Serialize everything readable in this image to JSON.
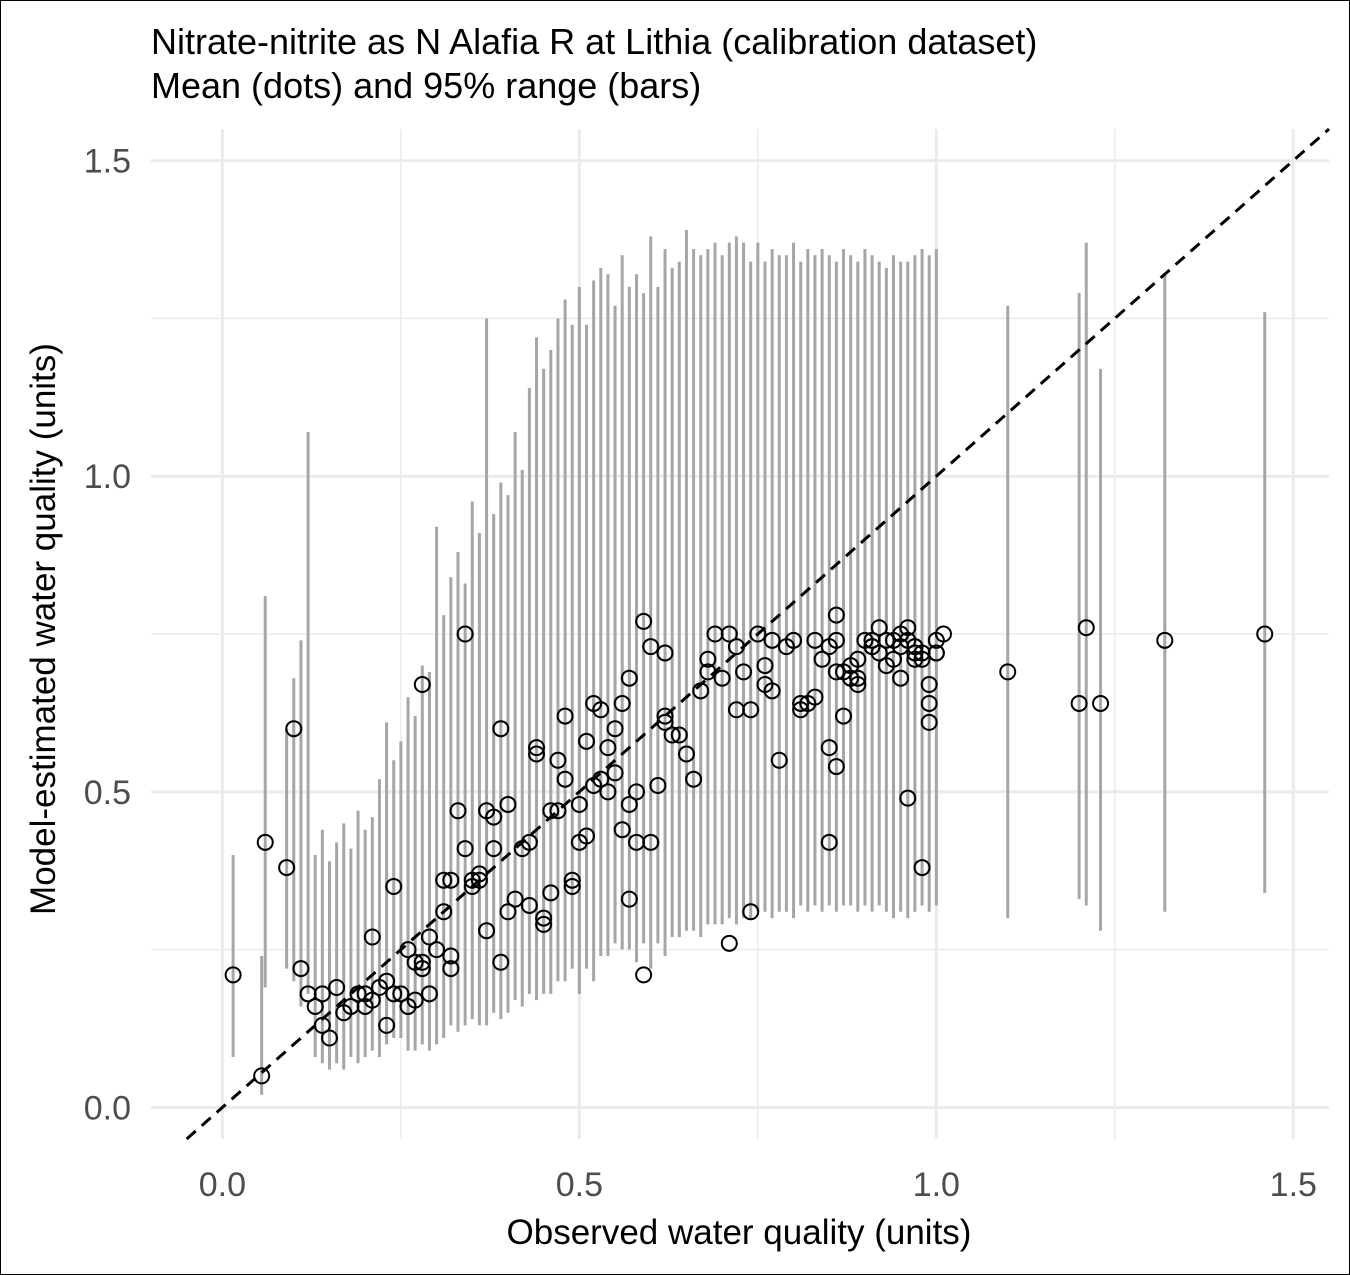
{
  "chart_data": {
    "type": "scatter",
    "title": "Nitrate-nitrite as N Alafia R at Lithia (calibration dataset)",
    "subtitle": "Mean (dots) and 95% range (bars)",
    "xlabel": "Observed water quality (units)",
    "ylabel": "Model-estimated water quality (units)",
    "xlim": [
      -0.1,
      1.55
    ],
    "ylim": [
      -0.05,
      1.55
    ],
    "xticks": [
      "0.0",
      "0.5",
      "1.0",
      "1.5"
    ],
    "yticks": [
      "0.0",
      "0.5",
      "1.0",
      "1.5"
    ],
    "grid": true,
    "reference_line": {
      "style": "dashed",
      "slope": 1,
      "intercept": 0
    },
    "colors": {
      "bars": "#a6a6a6",
      "points": "#000000",
      "grid": "#ebebeb",
      "axis_text": "#4d4d4d"
    },
    "series": [
      {
        "type": "errorbar",
        "points": [
          [
            0.015,
            0.08,
            0.4
          ],
          [
            0.055,
            0.02,
            0.24
          ],
          [
            0.06,
            0.19,
            0.81
          ],
          [
            0.09,
            0.22,
            0.6
          ],
          [
            0.1,
            0.2,
            0.68
          ],
          [
            0.11,
            0.16,
            0.74
          ],
          [
            0.12,
            0.18,
            1.07
          ],
          [
            0.13,
            0.08,
            0.4
          ],
          [
            0.14,
            0.07,
            0.44
          ],
          [
            0.15,
            0.06,
            0.39
          ],
          [
            0.16,
            0.07,
            0.42
          ],
          [
            0.17,
            0.06,
            0.45
          ],
          [
            0.18,
            0.08,
            0.41
          ],
          [
            0.19,
            0.07,
            0.47
          ],
          [
            0.2,
            0.08,
            0.44
          ],
          [
            0.21,
            0.09,
            0.46
          ],
          [
            0.22,
            0.08,
            0.52
          ],
          [
            0.23,
            0.1,
            0.61
          ],
          [
            0.24,
            0.11,
            0.55
          ],
          [
            0.25,
            0.11,
            0.58
          ],
          [
            0.26,
            0.09,
            0.65
          ],
          [
            0.27,
            0.09,
            0.62
          ],
          [
            0.28,
            0.1,
            0.7
          ],
          [
            0.29,
            0.09,
            0.69
          ],
          [
            0.3,
            0.1,
            0.92
          ],
          [
            0.31,
            0.11,
            0.78
          ],
          [
            0.32,
            0.13,
            0.84
          ],
          [
            0.33,
            0.12,
            0.88
          ],
          [
            0.34,
            0.13,
            0.83
          ],
          [
            0.35,
            0.14,
            0.96
          ],
          [
            0.36,
            0.13,
            0.91
          ],
          [
            0.37,
            0.13,
            1.25
          ],
          [
            0.38,
            0.15,
            0.94
          ],
          [
            0.39,
            0.14,
            0.99
          ],
          [
            0.4,
            0.15,
            0.97
          ],
          [
            0.41,
            0.17,
            1.07
          ],
          [
            0.42,
            0.16,
            1.01
          ],
          [
            0.43,
            0.18,
            1.14
          ],
          [
            0.44,
            0.17,
            1.22
          ],
          [
            0.45,
            0.18,
            1.17
          ],
          [
            0.46,
            0.18,
            1.2
          ],
          [
            0.47,
            0.2,
            1.25
          ],
          [
            0.48,
            0.2,
            1.28
          ],
          [
            0.49,
            0.22,
            1.24
          ],
          [
            0.5,
            0.18,
            1.3
          ],
          [
            0.51,
            0.22,
            1.24
          ],
          [
            0.52,
            0.2,
            1.31
          ],
          [
            0.53,
            0.24,
            1.33
          ],
          [
            0.54,
            0.24,
            1.32
          ],
          [
            0.55,
            0.26,
            1.27
          ],
          [
            0.56,
            0.25,
            1.35
          ],
          [
            0.57,
            0.25,
            1.3
          ],
          [
            0.58,
            0.23,
            1.32
          ],
          [
            0.59,
            0.26,
            1.29
          ],
          [
            0.6,
            0.22,
            1.38
          ],
          [
            0.61,
            0.26,
            1.3
          ],
          [
            0.62,
            0.24,
            1.36
          ],
          [
            0.63,
            0.27,
            1.33
          ],
          [
            0.64,
            0.27,
            1.34
          ],
          [
            0.65,
            0.28,
            1.39
          ],
          [
            0.66,
            0.28,
            1.36
          ],
          [
            0.67,
            0.27,
            1.35
          ],
          [
            0.68,
            0.29,
            1.36
          ],
          [
            0.69,
            0.29,
            1.37
          ],
          [
            0.7,
            0.29,
            1.35
          ],
          [
            0.71,
            0.3,
            1.37
          ],
          [
            0.72,
            0.29,
            1.38
          ],
          [
            0.73,
            0.3,
            1.37
          ],
          [
            0.74,
            0.3,
            1.34
          ],
          [
            0.75,
            0.31,
            1.37
          ],
          [
            0.76,
            0.31,
            1.34
          ],
          [
            0.77,
            0.3,
            1.36
          ],
          [
            0.78,
            0.31,
            1.35
          ],
          [
            0.79,
            0.31,
            1.35
          ],
          [
            0.8,
            0.3,
            1.37
          ],
          [
            0.81,
            0.32,
            1.34
          ],
          [
            0.82,
            0.31,
            1.36
          ],
          [
            0.83,
            0.32,
            1.35
          ],
          [
            0.84,
            0.31,
            1.36
          ],
          [
            0.85,
            0.32,
            1.35
          ],
          [
            0.86,
            0.31,
            1.34
          ],
          [
            0.87,
            0.32,
            1.36
          ],
          [
            0.88,
            0.32,
            1.35
          ],
          [
            0.89,
            0.31,
            1.34
          ],
          [
            0.9,
            0.32,
            1.36
          ],
          [
            0.91,
            0.31,
            1.35
          ],
          [
            0.92,
            0.32,
            1.34
          ],
          [
            0.93,
            0.31,
            1.33
          ],
          [
            0.94,
            0.3,
            1.35
          ],
          [
            0.95,
            0.31,
            1.34
          ],
          [
            0.96,
            0.3,
            1.34
          ],
          [
            0.97,
            0.31,
            1.35
          ],
          [
            0.98,
            0.32,
            1.36
          ],
          [
            0.99,
            0.31,
            1.35
          ],
          [
            1.0,
            0.32,
            1.36
          ],
          [
            1.1,
            0.3,
            1.27
          ],
          [
            1.2,
            0.33,
            1.29
          ],
          [
            1.21,
            0.32,
            1.37
          ],
          [
            1.23,
            0.28,
            1.17
          ],
          [
            1.32,
            0.31,
            1.32
          ],
          [
            1.46,
            0.34,
            1.26
          ]
        ]
      },
      {
        "type": "points",
        "points": [
          [
            0.015,
            0.21
          ],
          [
            0.055,
            0.05
          ],
          [
            0.06,
            0.42
          ],
          [
            0.09,
            0.38
          ],
          [
            0.1,
            0.6
          ],
          [
            0.11,
            0.22
          ],
          [
            0.12,
            0.18
          ],
          [
            0.13,
            0.16
          ],
          [
            0.14,
            0.13
          ],
          [
            0.14,
            0.18
          ],
          [
            0.15,
            0.11
          ],
          [
            0.16,
            0.19
          ],
          [
            0.17,
            0.15
          ],
          [
            0.18,
            0.16
          ],
          [
            0.19,
            0.18
          ],
          [
            0.2,
            0.16
          ],
          [
            0.2,
            0.18
          ],
          [
            0.21,
            0.17
          ],
          [
            0.21,
            0.27
          ],
          [
            0.22,
            0.19
          ],
          [
            0.23,
            0.2
          ],
          [
            0.23,
            0.13
          ],
          [
            0.24,
            0.18
          ],
          [
            0.24,
            0.35
          ],
          [
            0.25,
            0.18
          ],
          [
            0.26,
            0.16
          ],
          [
            0.26,
            0.25
          ],
          [
            0.27,
            0.23
          ],
          [
            0.27,
            0.17
          ],
          [
            0.28,
            0.22
          ],
          [
            0.28,
            0.23
          ],
          [
            0.28,
            0.67
          ],
          [
            0.29,
            0.18
          ],
          [
            0.29,
            0.27
          ],
          [
            0.3,
            0.25
          ],
          [
            0.31,
            0.31
          ],
          [
            0.31,
            0.36
          ],
          [
            0.32,
            0.36
          ],
          [
            0.32,
            0.22
          ],
          [
            0.32,
            0.24
          ],
          [
            0.33,
            0.47
          ],
          [
            0.34,
            0.41
          ],
          [
            0.34,
            0.75
          ],
          [
            0.35,
            0.35
          ],
          [
            0.35,
            0.36
          ],
          [
            0.36,
            0.37
          ],
          [
            0.36,
            0.36
          ],
          [
            0.37,
            0.28
          ],
          [
            0.37,
            0.47
          ],
          [
            0.38,
            0.41
          ],
          [
            0.38,
            0.46
          ],
          [
            0.39,
            0.6
          ],
          [
            0.39,
            0.23
          ],
          [
            0.4,
            0.31
          ],
          [
            0.4,
            0.48
          ],
          [
            0.41,
            0.33
          ],
          [
            0.42,
            0.41
          ],
          [
            0.43,
            0.32
          ],
          [
            0.43,
            0.42
          ],
          [
            0.44,
            0.57
          ],
          [
            0.44,
            0.56
          ],
          [
            0.45,
            0.3
          ],
          [
            0.45,
            0.29
          ],
          [
            0.46,
            0.34
          ],
          [
            0.46,
            0.47
          ],
          [
            0.47,
            0.55
          ],
          [
            0.47,
            0.47
          ],
          [
            0.48,
            0.52
          ],
          [
            0.48,
            0.62
          ],
          [
            0.49,
            0.36
          ],
          [
            0.49,
            0.35
          ],
          [
            0.5,
            0.42
          ],
          [
            0.5,
            0.48
          ],
          [
            0.51,
            0.58
          ],
          [
            0.51,
            0.43
          ],
          [
            0.52,
            0.64
          ],
          [
            0.52,
            0.51
          ],
          [
            0.53,
            0.52
          ],
          [
            0.53,
            0.63
          ],
          [
            0.54,
            0.57
          ],
          [
            0.54,
            0.5
          ],
          [
            0.55,
            0.6
          ],
          [
            0.55,
            0.53
          ],
          [
            0.56,
            0.64
          ],
          [
            0.56,
            0.44
          ],
          [
            0.57,
            0.48
          ],
          [
            0.57,
            0.33
          ],
          [
            0.57,
            0.68
          ],
          [
            0.58,
            0.42
          ],
          [
            0.58,
            0.5
          ],
          [
            0.59,
            0.77
          ],
          [
            0.59,
            0.21
          ],
          [
            0.6,
            0.73
          ],
          [
            0.6,
            0.42
          ],
          [
            0.61,
            0.51
          ],
          [
            0.62,
            0.72
          ],
          [
            0.62,
            0.62
          ],
          [
            0.62,
            0.61
          ],
          [
            0.63,
            0.59
          ],
          [
            0.64,
            0.59
          ],
          [
            0.65,
            0.56
          ],
          [
            0.66,
            0.52
          ],
          [
            0.67,
            0.66
          ],
          [
            0.68,
            0.69
          ],
          [
            0.68,
            0.71
          ],
          [
            0.69,
            0.75
          ],
          [
            0.7,
            0.68
          ],
          [
            0.71,
            0.75
          ],
          [
            0.71,
            0.26
          ],
          [
            0.72,
            0.73
          ],
          [
            0.72,
            0.63
          ],
          [
            0.73,
            0.69
          ],
          [
            0.74,
            0.63
          ],
          [
            0.74,
            0.31
          ],
          [
            0.75,
            0.75
          ],
          [
            0.76,
            0.7
          ],
          [
            0.76,
            0.67
          ],
          [
            0.77,
            0.74
          ],
          [
            0.77,
            0.66
          ],
          [
            0.78,
            0.55
          ],
          [
            0.79,
            0.73
          ],
          [
            0.8,
            0.74
          ],
          [
            0.81,
            0.63
          ],
          [
            0.81,
            0.64
          ],
          [
            0.82,
            0.64
          ],
          [
            0.83,
            0.74
          ],
          [
            0.83,
            0.65
          ],
          [
            0.84,
            0.71
          ],
          [
            0.85,
            0.73
          ],
          [
            0.85,
            0.42
          ],
          [
            0.86,
            0.69
          ],
          [
            0.86,
            0.74
          ],
          [
            0.87,
            0.62
          ],
          [
            0.88,
            0.68
          ],
          [
            0.89,
            0.67
          ],
          [
            0.89,
            0.68
          ],
          [
            0.9,
            0.74
          ],
          [
            0.91,
            0.74
          ],
          [
            0.91,
            0.73
          ],
          [
            0.92,
            0.72
          ],
          [
            0.92,
            0.76
          ],
          [
            0.93,
            0.7
          ],
          [
            0.93,
            0.74
          ],
          [
            0.94,
            0.74
          ],
          [
            0.94,
            0.71
          ],
          [
            0.95,
            0.68
          ],
          [
            0.95,
            0.73
          ],
          [
            0.96,
            0.49
          ],
          [
            0.96,
            0.74
          ],
          [
            0.97,
            0.72
          ],
          [
            0.97,
            0.73
          ],
          [
            0.98,
            0.38
          ],
          [
            0.98,
            0.71
          ],
          [
            0.99,
            0.67
          ],
          [
            1.0,
            0.72
          ],
          [
            1.0,
            0.72
          ],
          [
            0.85,
            0.57
          ],
          [
            0.86,
            0.54
          ],
          [
            0.86,
            0.78
          ],
          [
            0.87,
            0.69
          ],
          [
            0.88,
            0.7
          ],
          [
            0.89,
            0.71
          ],
          [
            0.91,
            0.73
          ],
          [
            0.95,
            0.75
          ],
          [
            0.96,
            0.76
          ],
          [
            0.97,
            0.73
          ],
          [
            0.97,
            0.71
          ],
          [
            0.98,
            0.72
          ],
          [
            0.99,
            0.64
          ],
          [
            0.99,
            0.61
          ],
          [
            1.0,
            0.74
          ],
          [
            1.01,
            0.75
          ],
          [
            1.1,
            0.69
          ],
          [
            1.2,
            0.64
          ],
          [
            1.21,
            0.76
          ],
          [
            1.23,
            0.64
          ],
          [
            1.32,
            0.74
          ],
          [
            1.46,
            0.75
          ]
        ]
      }
    ]
  }
}
